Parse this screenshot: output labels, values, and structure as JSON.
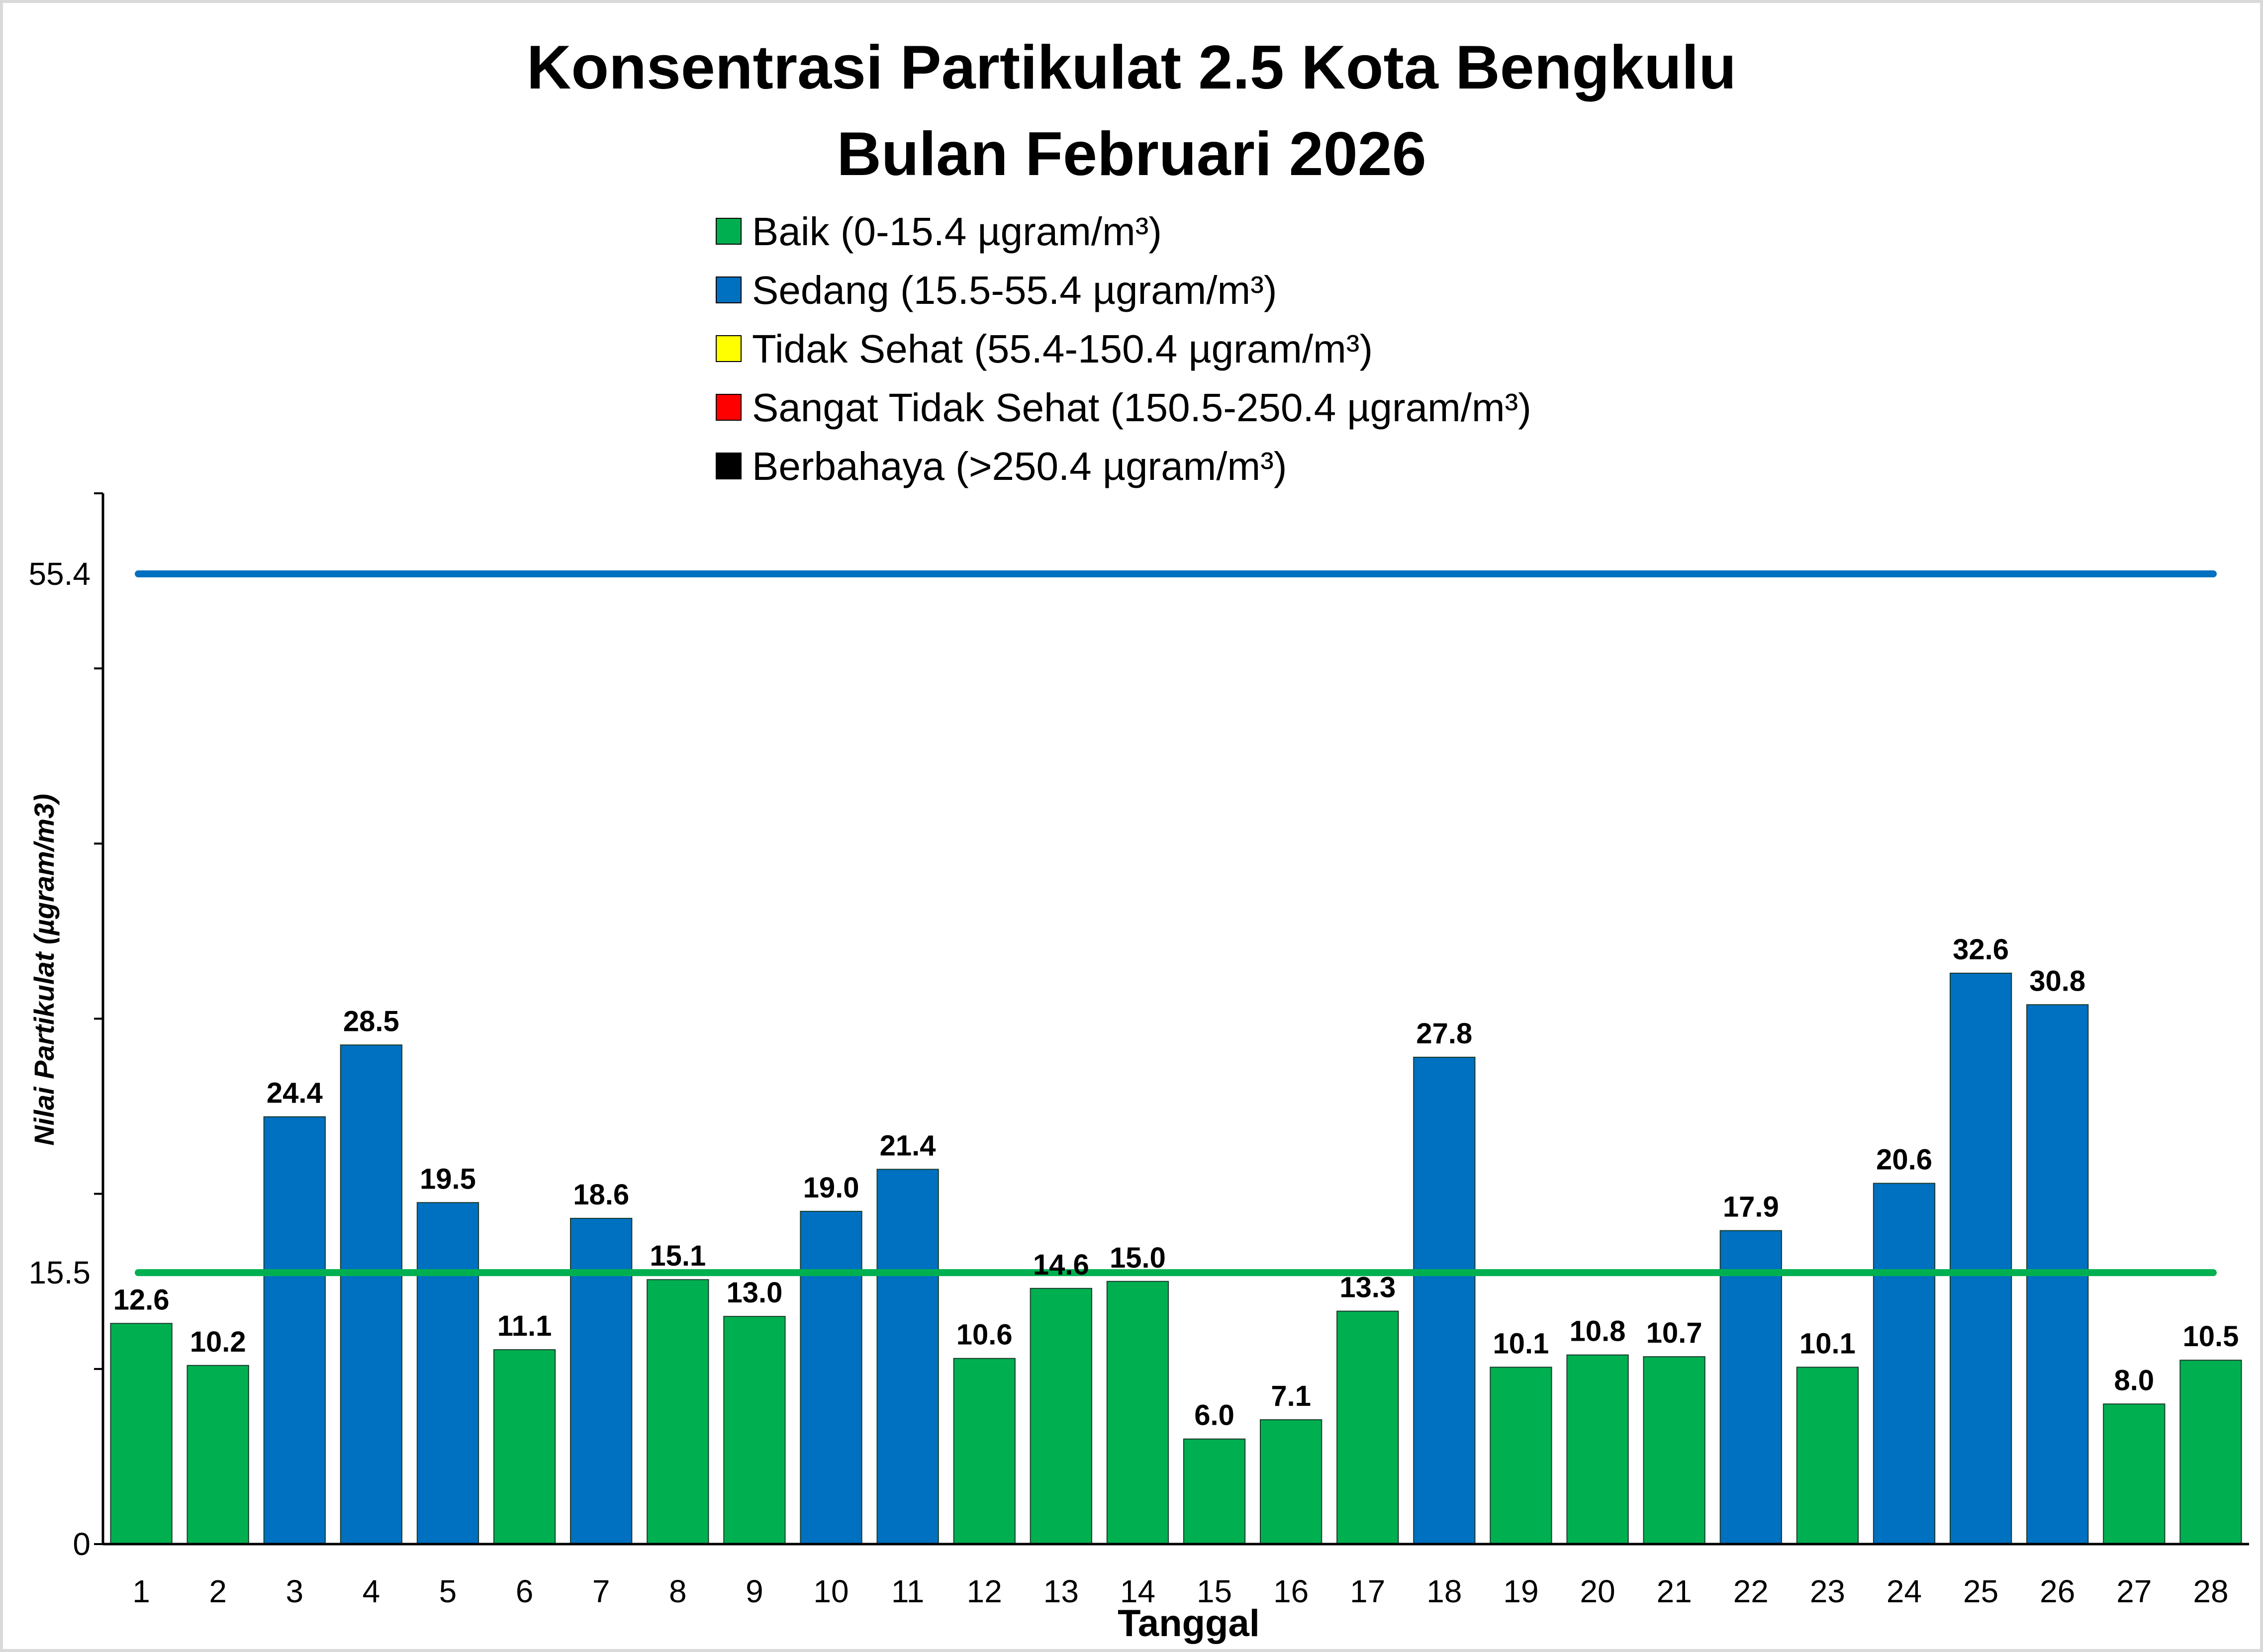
{
  "chart_data": {
    "type": "bar",
    "title": "Konsentrasi Partikulat 2.5 Kota Bengkulu",
    "subtitle": "Bulan Februari 2026",
    "xlabel": "Tanggal",
    "ylabel": "Nilai Partikulat (µgram/m3)",
    "ylim": [
      0,
      60
    ],
    "y_tick_step": 10,
    "y_tick_labels": [
      {
        "value": 0,
        "label": "0"
      },
      {
        "value": 15.5,
        "label": "15.5"
      },
      {
        "value": 55.4,
        "label": "55.4"
      }
    ],
    "grid": false,
    "categories": [
      "1",
      "2",
      "3",
      "4",
      "5",
      "6",
      "7",
      "8",
      "9",
      "10",
      "11",
      "12",
      "13",
      "14",
      "15",
      "16",
      "17",
      "18",
      "19",
      "20",
      "21",
      "22",
      "23",
      "24",
      "25",
      "26",
      "27",
      "28"
    ],
    "values": [
      12.6,
      10.2,
      24.4,
      28.5,
      19.5,
      11.1,
      18.6,
      15.1,
      13.0,
      19.0,
      21.4,
      10.6,
      14.6,
      15.0,
      6.0,
      7.1,
      13.3,
      27.8,
      10.1,
      10.8,
      10.7,
      17.9,
      10.1,
      20.6,
      32.6,
      30.8,
      8.0,
      10.5
    ],
    "value_labels": [
      "12.6",
      "10.2",
      "24.4",
      "28.5",
      "19.5",
      "11.1",
      "18.6",
      "15.1",
      "13.0",
      "19.0",
      "21.4",
      "10.6",
      "14.6",
      "15.0",
      "6.0",
      "7.1",
      "13.3",
      "27.8",
      "10.1",
      "10.8",
      "10.7",
      "17.9",
      "10.1",
      "20.6",
      "32.6",
      "30.8",
      "8.0",
      "10.5"
    ],
    "bar_category": [
      "Baik",
      "Baik",
      "Sedang",
      "Sedang",
      "Sedang",
      "Baik",
      "Sedang",
      "Baik",
      "Baik",
      "Sedang",
      "Sedang",
      "Baik",
      "Baik",
      "Baik",
      "Baik",
      "Baik",
      "Baik",
      "Sedang",
      "Baik",
      "Baik",
      "Baik",
      "Sedang",
      "Baik",
      "Sedang",
      "Sedang",
      "Sedang",
      "Baik",
      "Baik"
    ],
    "reference_lines": [
      {
        "name": "Batas Sedang",
        "value": 55.4,
        "color": "#0070C0"
      },
      {
        "name": "Batas Baik",
        "value": 15.5,
        "color": "#00B050"
      }
    ],
    "legend": {
      "placement": "top-center",
      "entries": [
        {
          "key": "Baik",
          "label": "Baik (0-15.4 µgram/m³)",
          "color": "#00B050"
        },
        {
          "key": "Sedang",
          "label": "Sedang (15.5-55.4 µgram/m³)",
          "color": "#0070C0"
        },
        {
          "key": "Tidak Sehat",
          "label": "Tidak Sehat (55.4-150.4 µgram/m³)",
          "color": "#FFFF00"
        },
        {
          "key": "Sangat Tidak Sehat",
          "label": "Sangat Tidak Sehat (150.5-250.4 µgram/m³)",
          "color": "#FF0000"
        },
        {
          "key": "Berbahaya",
          "label": "Berbahaya (>250.4 µgram/m³)",
          "color": "#000000"
        }
      ]
    },
    "colors": {
      "Baik": "#00B050",
      "Sedang": "#0070C0",
      "frame": "#D9D9D9"
    }
  }
}
